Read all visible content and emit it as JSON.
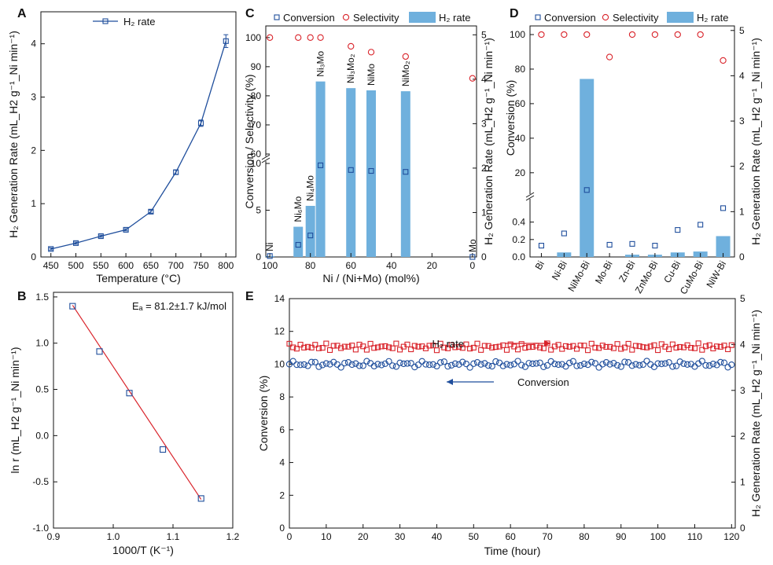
{
  "colors": {
    "blue": "#1f4e9c",
    "red": "#d9232a",
    "bar": "#6fb0dd",
    "axis": "#111111"
  },
  "panels": {
    "A": "A",
    "B": "B",
    "C": "C",
    "D": "D",
    "E": "E"
  },
  "chart_data": [
    {
      "id": "A",
      "type": "line",
      "x": [
        450,
        500,
        550,
        600,
        650,
        700,
        750,
        800
      ],
      "y": [
        0.15,
        0.26,
        0.39,
        0.51,
        0.85,
        1.59,
        2.51,
        4.05
      ],
      "err": [
        0.02,
        0.02,
        0.02,
        0.02,
        0.03,
        0.04,
        0.06,
        0.12
      ],
      "xlim": [
        430,
        820
      ],
      "ylim": [
        0,
        4.6
      ],
      "xticks": [
        450,
        500,
        550,
        600,
        650,
        700,
        750,
        800
      ],
      "yticks": [
        0,
        1,
        2,
        3,
        4
      ],
      "xlabel": "Temperature (°C)",
      "ylabel": "H₂ Generation Rate (mL_H2 g⁻¹_Ni min⁻¹)",
      "legend": "H₂ rate",
      "legend_position": "top-left"
    },
    {
      "id": "B",
      "type": "scatter",
      "x": [
        0.932,
        0.977,
        1.027,
        1.083,
        1.147
      ],
      "y": [
        1.4,
        0.91,
        0.46,
        -0.15,
        -0.68
      ],
      "fit": [
        [
          0.932,
          1.41
        ],
        [
          1.147,
          -0.69
        ]
      ],
      "xlim": [
        0.9,
        1.2
      ],
      "ylim": [
        -1.0,
        1.55
      ],
      "xticks": [
        0.9,
        1.0,
        1.1,
        1.2
      ],
      "xtick_labels": [
        "0.9",
        "1.0",
        "1.1",
        "1.2"
      ],
      "yticks": [
        -1.0,
        -0.5,
        0.0,
        0.5,
        1.0,
        1.5
      ],
      "ytick_labels": [
        "-1.0",
        "-0.5",
        "0.0",
        "0.5",
        "1.0",
        "1.5"
      ],
      "xlabel": "1000/T (K⁻¹)",
      "ylabel": "ln r (mL_H2 g⁻¹_Ni min⁻¹)",
      "annotation": "Eₐ = 81.2±1.7 kJ/mol"
    },
    {
      "id": "C",
      "type": "bar",
      "categories": [
        "Ni",
        "Ni₆Mo",
        "Ni₄Mo",
        "Ni₃Mo",
        "Ni₃Mo₂",
        "NiMo",
        "NiMo₂",
        "Mo"
      ],
      "x": [
        100,
        86,
        80,
        75,
        60,
        50,
        33,
        0
      ],
      "h2_rate": [
        0.02,
        0.68,
        1.15,
        3.95,
        3.8,
        3.75,
        3.73,
        0.0
      ],
      "conversion": [
        0.1,
        1.3,
        2.3,
        9.8,
        9.3,
        9.2,
        9.1,
        0.0
      ],
      "selectivity": [
        100,
        100,
        100,
        100,
        97,
        95,
        93.5,
        86
      ],
      "xlim": [
        102,
        -2
      ],
      "xticks": [
        100,
        80,
        60,
        40,
        20,
        0
      ],
      "left_axis_lower": [
        0,
        10
      ],
      "left_axis_upper": [
        60,
        104
      ],
      "left_ticks_lower": [
        0,
        5,
        10
      ],
      "left_ticks_upper": [
        60,
        70,
        80,
        90,
        100
      ],
      "right_axis": [
        0,
        5.2
      ],
      "right_ticks": [
        0,
        1,
        2,
        3,
        4,
        5
      ],
      "xlabel": "Ni / (Ni+Mo) (mol%)",
      "ylabel_left": "Conversion / Selectivity (%)",
      "ylabel_right": "H₂ Generation Rate (mL_H2 g⁻¹_Ni min⁻¹)",
      "legend": [
        "Conversion",
        "Selectivity",
        "H₂ rate"
      ],
      "legend_position": "top"
    },
    {
      "id": "D",
      "type": "bar",
      "categories": [
        "Bi",
        "Ni-Bi",
        "NiMo-Bi",
        "Mo-Bi",
        "Zn-Bi",
        "ZnMo-Bi",
        "Cu-Bi",
        "CuMo-Bi",
        "NiW-Bi"
      ],
      "h2_rate": [
        0.0,
        0.1,
        3.93,
        0.0,
        0.05,
        0.05,
        0.1,
        0.12,
        0.46
      ],
      "conversion": [
        0.13,
        0.27,
        10.0,
        0.14,
        0.15,
        0.13,
        0.31,
        0.37,
        0.56
      ],
      "selectivity": [
        100,
        100,
        100,
        87,
        100,
        100,
        100,
        100,
        85
      ],
      "left_axis_lower": [
        0,
        0.64
      ],
      "left_axis_upper": [
        9,
        105
      ],
      "left_ticks_lower": [
        0.0,
        0.2,
        0.4
      ],
      "left_ticks_upper": [
        20,
        40,
        60,
        80,
        100
      ],
      "right_axis": [
        0,
        5.1
      ],
      "right_ticks": [
        0,
        1,
        2,
        3,
        4,
        5
      ],
      "ylabel_left": "Conversion (%)",
      "ylabel_right": "H₂ Generation Rate (mL_H2 g⁻¹_Ni min⁻¹)",
      "legend": [
        "Conversion",
        "Selectivity",
        "H₂ rate"
      ],
      "legend_position": "top"
    },
    {
      "id": "E",
      "type": "scatter",
      "time_range": [
        0,
        120
      ],
      "n_points": 121,
      "conversion_mean": 10.0,
      "conversion_amp": 0.2,
      "h2_rate_mean": 3.95,
      "h2_rate_amp": 0.08,
      "xlim": [
        0,
        121
      ],
      "ylim_left": [
        0,
        14
      ],
      "ylim_right": [
        0,
        5
      ],
      "xticks": [
        0,
        10,
        20,
        30,
        40,
        50,
        60,
        70,
        80,
        90,
        100,
        110,
        120
      ],
      "yticks_left": [
        0,
        2,
        4,
        6,
        8,
        10,
        12,
        14
      ],
      "yticks_right": [
        0,
        1,
        2,
        3,
        4,
        5
      ],
      "xlabel": "Time (hour)",
      "ylabel_left": "Conversion (%)",
      "ylabel_right": "H₂ Generation Rate (mL_H2 g⁻¹_Ni min⁻¹)",
      "annotations": [
        "H₂ rate",
        "Conversion"
      ]
    }
  ]
}
